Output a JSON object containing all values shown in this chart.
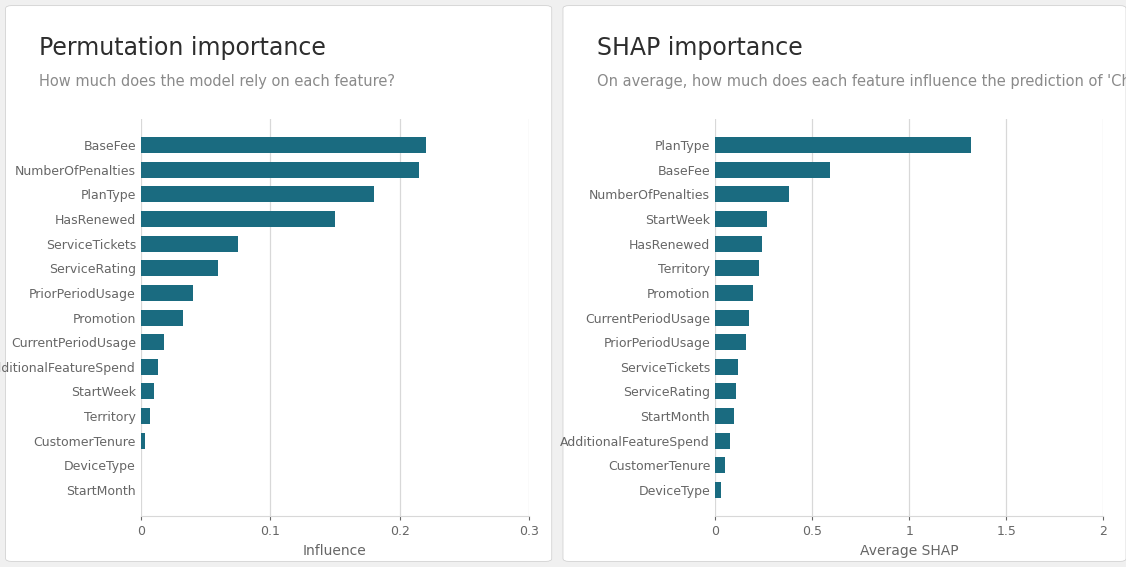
{
  "perm_title": "Permutation importance",
  "perm_subtitle": "How much does the model rely on each feature?",
  "perm_xlabel": "Influence",
  "perm_features": [
    "StartMonth",
    "DeviceType",
    "CustomerTenure",
    "Territory",
    "StartWeek",
    "AdditionalFeatureSpend",
    "CurrentPeriodUsage",
    "Promotion",
    "PriorPeriodUsage",
    "ServiceRating",
    "ServiceTickets",
    "HasRenewed",
    "PlanType",
    "NumberOfPenalties",
    "BaseFee"
  ],
  "perm_values": [
    0.0,
    0.0,
    0.003,
    0.007,
    0.01,
    0.013,
    0.018,
    0.033,
    0.04,
    0.06,
    0.075,
    0.15,
    0.18,
    0.215,
    0.22
  ],
  "perm_xlim": [
    0,
    0.3
  ],
  "perm_xticks": [
    0,
    0.1,
    0.2,
    0.3
  ],
  "perm_xticklabels": [
    "0",
    "0.1",
    "0.2",
    "0.3"
  ],
  "shap_title": "SHAP importance",
  "shap_subtitle": "On average, how much does each feature influence the prediction of 'Churned'?",
  "shap_xlabel": "Average SHAP",
  "shap_features": [
    "DeviceType",
    "CustomerTenure",
    "AdditionalFeatureSpend",
    "StartMonth",
    "ServiceRating",
    "ServiceTickets",
    "PriorPeriodUsage",
    "CurrentPeriodUsage",
    "Promotion",
    "Territory",
    "HasRenewed",
    "StartWeek",
    "NumberOfPenalties",
    "BaseFee",
    "PlanType"
  ],
  "shap_values": [
    0.03,
    0.05,
    0.075,
    0.1,
    0.11,
    0.12,
    0.16,
    0.175,
    0.195,
    0.225,
    0.24,
    0.27,
    0.38,
    0.59,
    1.32
  ],
  "shap_xlim": [
    0,
    2.0
  ],
  "shap_xticks": [
    0,
    0.5,
    1.0,
    1.5,
    2.0
  ],
  "shap_xticklabels": [
    "0",
    "0.5",
    "1",
    "1.5",
    "2"
  ],
  "bar_color": "#1a6b80",
  "title_color": "#2d2d2d",
  "subtitle_color": "#8a8a8a",
  "bg_color": "#f0f0f0",
  "panel_bg": "#ffffff",
  "grid_color": "#d8d8d8",
  "tick_color": "#666666",
  "title_fontsize": 17,
  "subtitle_fontsize": 10.5,
  "label_fontsize": 10,
  "tick_fontsize": 9
}
